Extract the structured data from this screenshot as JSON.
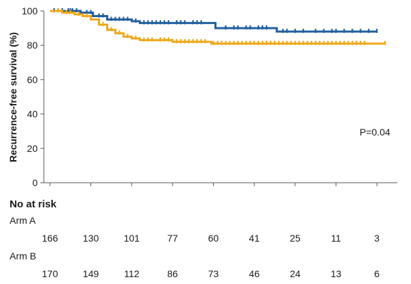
{
  "chart_data": {
    "type": "line",
    "ylabel": "Recurrence-free survival (%)",
    "xlabel": "",
    "ylim": [
      0,
      100
    ],
    "yticks": [
      0,
      20,
      40,
      60,
      80,
      100
    ],
    "grid": false,
    "x_ticks": [
      0,
      1,
      2,
      3,
      4,
      5,
      6,
      7,
      8
    ],
    "xlim": [
      -0.15,
      8.5
    ],
    "annotation": "P=0.04",
    "series": [
      {
        "name": "Arm A",
        "color": "#1f5fa0",
        "steps": [
          [
            0,
            100
          ],
          [
            0.35,
            100
          ],
          [
            0.75,
            99
          ],
          [
            1.05,
            97
          ],
          [
            1.4,
            95
          ],
          [
            2.0,
            94
          ],
          [
            2.2,
            93
          ],
          [
            3.0,
            93
          ],
          [
            3.85,
            93
          ],
          [
            4.05,
            90
          ],
          [
            5.0,
            90
          ],
          [
            5.45,
            90
          ],
          [
            5.55,
            88
          ],
          [
            6.0,
            88
          ],
          [
            8.0,
            88
          ]
        ],
        "censor_x": [
          0.1,
          0.2,
          0.3,
          0.45,
          0.5,
          0.55,
          0.65,
          0.9,
          1.0,
          1.2,
          1.3,
          1.5,
          1.6,
          1.7,
          1.8,
          1.9,
          2.1,
          2.3,
          2.4,
          2.5,
          2.6,
          2.7,
          2.8,
          2.9,
          3.1,
          3.2,
          3.3,
          3.5,
          3.6,
          3.7,
          4.3,
          4.5,
          4.6,
          4.8,
          4.9,
          5.1,
          5.2,
          5.3,
          5.7,
          5.8,
          6.0,
          6.2,
          6.5,
          6.7,
          6.9,
          7.0,
          7.2,
          7.4,
          7.6,
          7.8,
          8.0
        ]
      },
      {
        "name": "Arm B",
        "color": "#f0a818",
        "steps": [
          [
            0,
            100
          ],
          [
            0.3,
            99
          ],
          [
            0.6,
            98
          ],
          [
            0.8,
            97
          ],
          [
            1.0,
            95
          ],
          [
            1.2,
            92
          ],
          [
            1.4,
            89
          ],
          [
            1.6,
            87
          ],
          [
            1.8,
            85
          ],
          [
            2.0,
            84
          ],
          [
            2.2,
            83
          ],
          [
            2.6,
            83
          ],
          [
            3.0,
            82
          ],
          [
            3.85,
            82
          ],
          [
            3.95,
            81
          ],
          [
            4.0,
            81
          ],
          [
            8.2,
            81
          ]
        ],
        "censor_x": [
          0.2,
          0.4,
          0.5,
          0.7,
          0.9,
          1.3,
          1.5,
          1.7,
          1.9,
          2.1,
          2.3,
          2.4,
          2.5,
          2.7,
          2.8,
          2.9,
          3.1,
          3.2,
          3.3,
          3.4,
          3.5,
          3.6,
          3.7,
          3.8,
          4.0,
          4.1,
          4.2,
          4.3,
          4.4,
          4.5,
          4.6,
          4.7,
          4.8,
          4.9,
          5.0,
          5.1,
          5.2,
          5.3,
          5.4,
          5.5,
          5.6,
          5.7,
          5.8,
          5.9,
          6.0,
          6.1,
          6.2,
          6.3,
          6.4,
          6.5,
          6.6,
          6.7,
          6.8,
          6.9,
          7.0,
          7.1,
          7.2,
          7.3,
          7.4,
          7.5,
          7.6,
          7.7,
          8.2
        ]
      }
    ],
    "risk_table": {
      "title": "No at risk",
      "rows": [
        {
          "label": "Arm A",
          "values": [
            "166",
            "130",
            "101",
            "77",
            "60",
            "41",
            "25",
            "11",
            "3"
          ]
        },
        {
          "label": "Arm B",
          "values": [
            "170",
            "149",
            "112",
            "86",
            "73",
            "46",
            "24",
            "13",
            "6"
          ]
        }
      ]
    }
  }
}
